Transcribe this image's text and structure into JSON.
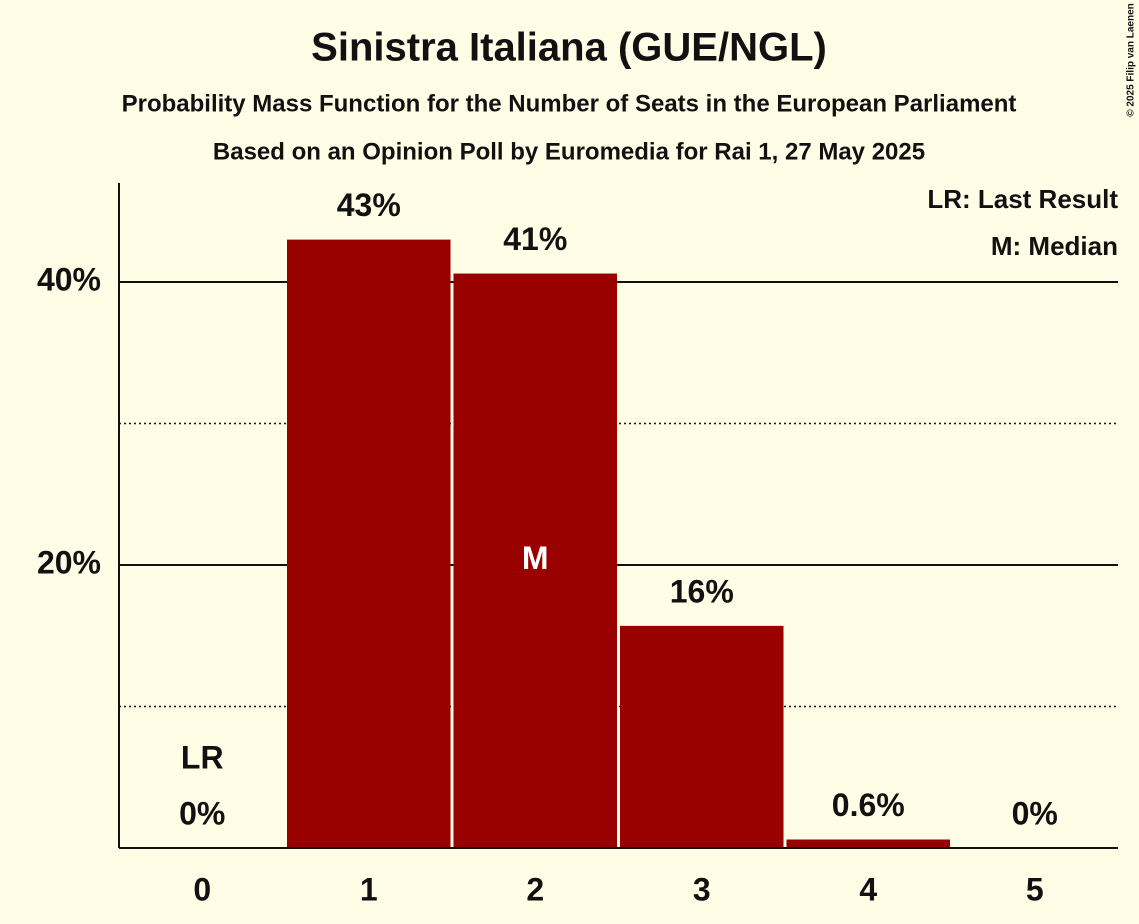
{
  "chart_data": {
    "type": "bar",
    "title": "Sinistra Italiana (GUE/NGL)",
    "subtitle": "Probability Mass Function for the Number of Seats in the European Parliament",
    "subtitle2": "Based on an Opinion Poll by Euromedia for Rai 1, 27 May 2025",
    "categories": [
      "0",
      "1",
      "2",
      "3",
      "4",
      "5"
    ],
    "values": [
      0,
      43,
      40.6,
      15.7,
      0.6,
      0
    ],
    "value_labels": [
      "0%",
      "43%",
      "41%",
      "16%",
      "0.6%",
      "0%"
    ],
    "color": "#990000",
    "ylim": [
      0,
      47
    ],
    "yticks": [
      {
        "value": 20,
        "label": "20%"
      },
      {
        "value": 40,
        "label": "40%"
      }
    ],
    "minor_yticks": [
      10,
      30
    ],
    "grid": true,
    "annotations": [
      {
        "text": "LR",
        "x": 0
      },
      {
        "text": "M",
        "x": 2
      }
    ],
    "legend": [
      "LR: Last Result",
      "M: Median"
    ],
    "legend_position": "upper right",
    "copyright": "© 2025 Filip van Laenen"
  }
}
